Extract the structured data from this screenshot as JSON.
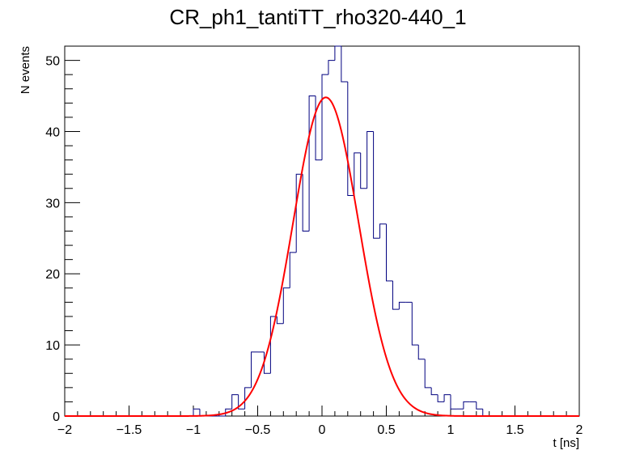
{
  "chart_data": {
    "type": "histogram",
    "title": "CR_ph1_tantiTT_rho320-440_1",
    "xlabel": "t [ns]",
    "ylabel": "N events",
    "xlim": [
      -2,
      2
    ],
    "ylim": [
      0,
      52
    ],
    "x_ticks": [
      -2,
      -1.5,
      -1,
      -0.5,
      0,
      0.5,
      1,
      1.5,
      2
    ],
    "x_tick_labels": [
      "−2",
      "−1.5",
      "−1",
      "−0.5",
      "0",
      "0.5",
      "1",
      "1.5",
      "2"
    ],
    "y_ticks": [
      0,
      10,
      20,
      30,
      40,
      50
    ],
    "y_tick_labels": [
      "0",
      "10",
      "20",
      "30",
      "40",
      "50"
    ],
    "grid": false,
    "legend": "none",
    "histogram": {
      "bin_width": 0.05,
      "color": "#00007f",
      "bins": [
        {
          "x0": -1.05,
          "x1": -1.0,
          "count": 0
        },
        {
          "x0": -1.0,
          "x1": -0.95,
          "count": 1
        },
        {
          "x0": -0.95,
          "x1": -0.9,
          "count": 0
        },
        {
          "x0": -0.9,
          "x1": -0.85,
          "count": 0
        },
        {
          "x0": -0.85,
          "x1": -0.8,
          "count": 0
        },
        {
          "x0": -0.8,
          "x1": -0.75,
          "count": 0
        },
        {
          "x0": -0.75,
          "x1": -0.7,
          "count": 1
        },
        {
          "x0": -0.7,
          "x1": -0.65,
          "count": 3
        },
        {
          "x0": -0.65,
          "x1": -0.6,
          "count": 1
        },
        {
          "x0": -0.6,
          "x1": -0.55,
          "count": 4
        },
        {
          "x0": -0.55,
          "x1": -0.5,
          "count": 9
        },
        {
          "x0": -0.5,
          "x1": -0.45,
          "count": 9
        },
        {
          "x0": -0.45,
          "x1": -0.4,
          "count": 6
        },
        {
          "x0": -0.4,
          "x1": -0.35,
          "count": 14
        },
        {
          "x0": -0.35,
          "x1": -0.3,
          "count": 13
        },
        {
          "x0": -0.3,
          "x1": -0.25,
          "count": 18
        },
        {
          "x0": -0.25,
          "x1": -0.2,
          "count": 23
        },
        {
          "x0": -0.2,
          "x1": -0.15,
          "count": 34
        },
        {
          "x0": -0.15,
          "x1": -0.1,
          "count": 26
        },
        {
          "x0": -0.1,
          "x1": -0.05,
          "count": 45
        },
        {
          "x0": -0.05,
          "x1": 0.0,
          "count": 36
        },
        {
          "x0": 0.0,
          "x1": 0.05,
          "count": 48
        },
        {
          "x0": 0.05,
          "x1": 0.1,
          "count": 50
        },
        {
          "x0": 0.1,
          "x1": 0.15,
          "count": 52
        },
        {
          "x0": 0.15,
          "x1": 0.2,
          "count": 47
        },
        {
          "x0": 0.2,
          "x1": 0.25,
          "count": 31
        },
        {
          "x0": 0.25,
          "x1": 0.3,
          "count": 37
        },
        {
          "x0": 0.3,
          "x1": 0.35,
          "count": 32
        },
        {
          "x0": 0.35,
          "x1": 0.4,
          "count": 40
        },
        {
          "x0": 0.4,
          "x1": 0.45,
          "count": 25
        },
        {
          "x0": 0.45,
          "x1": 0.5,
          "count": 27
        },
        {
          "x0": 0.5,
          "x1": 0.55,
          "count": 19
        },
        {
          "x0": 0.55,
          "x1": 0.6,
          "count": 15
        },
        {
          "x0": 0.6,
          "x1": 0.65,
          "count": 16
        },
        {
          "x0": 0.65,
          "x1": 0.7,
          "count": 16
        },
        {
          "x0": 0.7,
          "x1": 0.75,
          "count": 10
        },
        {
          "x0": 0.75,
          "x1": 0.8,
          "count": 8
        },
        {
          "x0": 0.8,
          "x1": 0.85,
          "count": 4
        },
        {
          "x0": 0.85,
          "x1": 0.9,
          "count": 3
        },
        {
          "x0": 0.9,
          "x1": 0.95,
          "count": 2
        },
        {
          "x0": 0.95,
          "x1": 1.0,
          "count": 3
        },
        {
          "x0": 1.0,
          "x1": 1.05,
          "count": 1
        },
        {
          "x0": 1.05,
          "x1": 1.1,
          "count": 1
        },
        {
          "x0": 1.1,
          "x1": 1.15,
          "count": 2
        },
        {
          "x0": 1.15,
          "x1": 1.2,
          "count": 2
        },
        {
          "x0": 1.2,
          "x1": 1.25,
          "count": 1
        },
        {
          "x0": 1.25,
          "x1": 1.3,
          "count": 0
        }
      ]
    },
    "fit": {
      "type": "gaussian",
      "color": "#ff0000",
      "amplitude": 44.8,
      "mean": 0.03,
      "sigma": 0.255
    }
  }
}
